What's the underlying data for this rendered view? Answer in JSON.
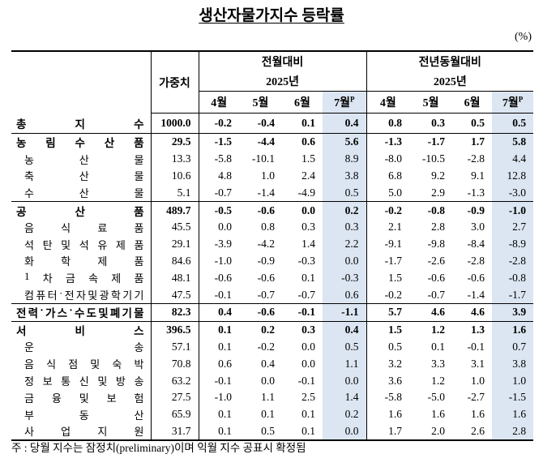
{
  "title": "생산자물가지수 등락률",
  "unit": "(%)",
  "header": {
    "weight": "가중치",
    "groups": [
      "전월대비",
      "전년동월대비"
    ],
    "years": [
      "2025년",
      "2025년"
    ],
    "months": [
      "4월",
      "5월",
      "6월",
      "7월"
    ],
    "preliminary": "P"
  },
  "table": {
    "total": {
      "name": "총지수",
      "weight": "1000.0",
      "values": [
        "-0.2",
        "-0.4",
        "0.1",
        "0.4",
        "0.8",
        "0.3",
        "0.5",
        "0.5"
      ]
    },
    "groups": [
      {
        "name": "농림수산품",
        "weight": "29.5",
        "values": [
          "-1.5",
          "-4.4",
          "0.6",
          "5.6",
          "-1.3",
          "-1.7",
          "1.7",
          "5.8"
        ],
        "items": [
          {
            "name": "농산물",
            "weight": "13.3",
            "values": [
              "-5.8",
              "-10.1",
              "1.5",
              "8.9",
              "-8.0",
              "-10.5",
              "-2.8",
              "4.4"
            ]
          },
          {
            "name": "축산물",
            "weight": "10.6",
            "values": [
              "4.8",
              "1.0",
              "2.4",
              "3.8",
              "6.8",
              "9.2",
              "9.1",
              "12.8"
            ]
          },
          {
            "name": "수산물",
            "weight": "5.1",
            "values": [
              "-0.7",
              "-1.4",
              "-4.9",
              "0.5",
              "5.0",
              "2.9",
              "-1.3",
              "-3.0"
            ]
          }
        ]
      },
      {
        "name": "공산품",
        "weight": "489.7",
        "values": [
          "-0.5",
          "-0.6",
          "0.0",
          "0.2",
          "-0.2",
          "-0.8",
          "-0.9",
          "-1.0"
        ],
        "items": [
          {
            "name": "음식료품",
            "weight": "45.5",
            "values": [
              "0.0",
              "0.8",
              "0.3",
              "0.3",
              "2.1",
              "2.8",
              "3.0",
              "2.7"
            ]
          },
          {
            "name": "석탄및석유제품",
            "weight": "29.1",
            "values": [
              "-3.9",
              "-4.2",
              "1.4",
              "2.2",
              "-9.1",
              "-9.8",
              "-8.4",
              "-8.9"
            ]
          },
          {
            "name": "화학제품",
            "weight": "84.6",
            "values": [
              "-1.0",
              "-0.9",
              "-0.3",
              "0.0",
              "-1.7",
              "-2.6",
              "-2.8",
              "-2.8"
            ]
          },
          {
            "name": "1차금속제품",
            "weight": "48.1",
            "values": [
              "-0.6",
              "-0.6",
              "0.1",
              "-0.3",
              "1.5",
              "-0.6",
              "-0.6",
              "-0.8"
            ]
          },
          {
            "name": "컴퓨터·전자및광학기기",
            "weight": "47.5",
            "values": [
              "-0.1",
              "-0.7",
              "-0.7",
              "0.6",
              "-0.2",
              "-0.7",
              "-1.4",
              "-1.7"
            ]
          }
        ]
      },
      {
        "name": "전력·가스·수도및폐기물",
        "weight": "82.3",
        "values": [
          "0.4",
          "-0.6",
          "-0.1",
          "-1.1",
          "5.7",
          "4.6",
          "4.6",
          "3.9"
        ],
        "items": []
      },
      {
        "name": "서비스",
        "weight": "396.5",
        "values": [
          "0.1",
          "0.2",
          "0.3",
          "0.4",
          "1.5",
          "1.2",
          "1.3",
          "1.6"
        ],
        "items": [
          {
            "name": "운송",
            "weight": "57.1",
            "values": [
              "0.1",
              "-0.2",
              "0.0",
              "0.5",
              "0.5",
              "0.1",
              "-0.1",
              "0.7"
            ]
          },
          {
            "name": "음식점및숙박",
            "weight": "70.8",
            "values": [
              "0.6",
              "0.4",
              "0.0",
              "1.1",
              "3.2",
              "3.3",
              "3.1",
              "3.8"
            ]
          },
          {
            "name": "정보통신및방송",
            "weight": "63.2",
            "values": [
              "-0.1",
              "0.0",
              "-0.1",
              "0.0",
              "3.6",
              "1.2",
              "1.0",
              "1.0"
            ]
          },
          {
            "name": "금융및보험",
            "weight": "27.5",
            "values": [
              "-1.0",
              "1.1",
              "2.5",
              "1.4",
              "-5.8",
              "-5.0",
              "-2.7",
              "-1.5"
            ]
          },
          {
            "name": "부동산",
            "weight": "65.9",
            "values": [
              "0.1",
              "0.1",
              "0.1",
              "0.2",
              "1.6",
              "1.6",
              "1.6",
              "1.6"
            ]
          },
          {
            "name": "사업지원",
            "weight": "31.7",
            "values": [
              "0.1",
              "0.5",
              "0.1",
              "0.0",
              "1.7",
              "2.0",
              "2.6",
              "2.8"
            ]
          }
        ]
      }
    ]
  },
  "footnote": "주 : 당월 지수는 잠정치(preliminary)이며 익월 지수 공표시 확정됨"
}
